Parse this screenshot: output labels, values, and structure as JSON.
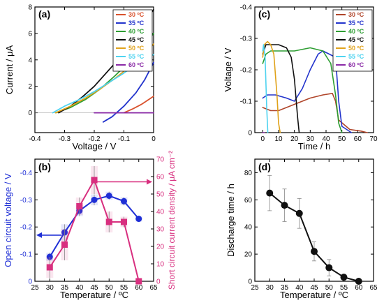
{
  "chart_data": [
    {
      "panel": "(a)",
      "type": "line",
      "xlabel": "Voltage / V",
      "ylabel": "Current / μA",
      "xlim": [
        -0.4,
        0
      ],
      "ylim": [
        -1.5,
        8
      ],
      "xticks": [
        -0.4,
        -0.3,
        -0.2,
        -0.1,
        0
      ],
      "yticks": [
        0,
        2,
        4,
        6,
        8
      ],
      "xtick_labels": [
        "-0.4",
        "-0.3",
        "-0.2",
        "-0.1",
        "0"
      ],
      "ytick_labels": [
        "0",
        "2",
        "4",
        "6",
        "8"
      ],
      "legend_position": "top-right",
      "series": [
        {
          "name": "30 ºC",
          "color": "#d9512c",
          "x": [
            -0.1,
            -0.07,
            -0.04,
            -0.02,
            0
          ],
          "y": [
            0,
            0.3,
            0.65,
            0.95,
            1.25
          ]
        },
        {
          "name": "35 ºC",
          "color": "#2233cc",
          "x": [
            -0.17,
            -0.14,
            -0.1,
            -0.06,
            -0.03,
            0
          ],
          "y": [
            -0.7,
            -0.3,
            0.5,
            1.5,
            2.5,
            3.8
          ]
        },
        {
          "name": "40 ºC",
          "color": "#2e9e33",
          "x": [
            -0.33,
            -0.28,
            -0.23,
            -0.18,
            -0.13,
            -0.08,
            -0.03,
            0
          ],
          "y": [
            0,
            0.4,
            1.0,
            1.8,
            2.8,
            3.9,
            5.2,
            6.0
          ]
        },
        {
          "name": "45 ºC",
          "color": "#111111",
          "x": [
            -0.32,
            -0.28,
            -0.24,
            -0.2,
            -0.16,
            -0.12,
            -0.08,
            -0.04,
            0
          ],
          "y": [
            0,
            0.5,
            1.2,
            2.0,
            3.0,
            4.0,
            5.2,
            6.5,
            7.8
          ]
        },
        {
          "name": "50 ºC",
          "color": "#e0a21a",
          "x": [
            -0.33,
            -0.28,
            -0.23,
            -0.18,
            -0.13,
            -0.08,
            -0.03,
            0
          ],
          "y": [
            0,
            0.5,
            1.1,
            1.8,
            2.6,
            3.5,
            4.4,
            5.2
          ]
        },
        {
          "name": "55 ºC",
          "color": "#4fd3f0",
          "x": [
            -0.34,
            -0.3,
            -0.25,
            -0.2,
            -0.15,
            -0.1,
            -0.05,
            0
          ],
          "y": [
            0,
            0.5,
            1.0,
            1.6,
            2.3,
            3.0,
            3.8,
            4.4
          ]
        },
        {
          "name": "60 ºC",
          "color": "#8a2aa6",
          "x": [
            -0.2,
            -0.15,
            -0.1,
            -0.05,
            0
          ],
          "y": [
            0,
            0,
            0,
            0,
            0
          ]
        }
      ]
    },
    {
      "panel": "(c)",
      "type": "line",
      "xlabel": "Time / h",
      "ylabel": "Voltage / V",
      "xlim": [
        -5,
        70
      ],
      "ylim": [
        0,
        -0.4
      ],
      "xticks": [
        0,
        10,
        20,
        30,
        40,
        50,
        60,
        70
      ],
      "yticks": [
        0,
        -0.1,
        -0.2,
        -0.3,
        -0.4
      ],
      "xtick_labels": [
        "0",
        "10",
        "20",
        "30",
        "40",
        "50",
        "60",
        "70"
      ],
      "ytick_labels": [
        "0",
        "-0.1",
        "-0.2",
        "-0.3",
        "-0.4"
      ],
      "legend_position": "top-right",
      "series": [
        {
          "name": "30 ºC",
          "color": "#b0452a",
          "x": [
            0,
            5,
            10,
            20,
            30,
            38,
            44,
            46,
            48,
            55,
            62,
            66
          ],
          "y": [
            -0.08,
            -0.07,
            -0.07,
            -0.09,
            -0.11,
            -0.12,
            -0.125,
            -0.1,
            -0.04,
            -0.01,
            -0.005,
            0
          ]
        },
        {
          "name": "35 ºC",
          "color": "#2233cc",
          "x": [
            0,
            3,
            8,
            15,
            20,
            25,
            30,
            35,
            38,
            42,
            46,
            48,
            50,
            56
          ],
          "y": [
            -0.11,
            -0.12,
            -0.12,
            -0.11,
            -0.1,
            -0.14,
            -0.2,
            -0.25,
            -0.26,
            -0.25,
            -0.24,
            -0.1,
            -0.02,
            0
          ]
        },
        {
          "name": "40 ºC",
          "color": "#2e9e33",
          "x": [
            0,
            2,
            5,
            10,
            20,
            30,
            38,
            43,
            46,
            48,
            50
          ],
          "y": [
            -0.22,
            -0.25,
            -0.26,
            -0.26,
            -0.26,
            -0.27,
            -0.26,
            -0.22,
            -0.12,
            -0.03,
            0
          ]
        },
        {
          "name": "45 ºC",
          "color": "#111111",
          "x": [
            0,
            2,
            5,
            10,
            15,
            18,
            20,
            22,
            23
          ],
          "y": [
            -0.25,
            -0.28,
            -0.28,
            -0.28,
            -0.27,
            -0.24,
            -0.17,
            -0.05,
            0
          ]
        },
        {
          "name": "50 ºC",
          "color": "#e0a21a",
          "x": [
            0,
            1,
            3,
            5,
            7,
            9,
            10,
            11
          ],
          "y": [
            -0.24,
            -0.28,
            -0.29,
            -0.28,
            -0.25,
            -0.12,
            -0.03,
            0
          ]
        },
        {
          "name": "55 ºC",
          "color": "#4fd3f0",
          "x": [
            0,
            0.5,
            1.5,
            2.5,
            3.2
          ],
          "y": [
            -0.26,
            -0.28,
            -0.24,
            -0.08,
            0
          ]
        },
        {
          "name": "60 ºC",
          "color": "#8a2aa6",
          "x": [
            0,
            0.5,
            1
          ],
          "y": [
            0,
            0,
            0
          ]
        }
      ]
    },
    {
      "panel": "(b)",
      "type": "line",
      "xlabel": "Temperature / ºC",
      "ylabel": "Open circuit voltage / V",
      "ylabel_right": "Short circuit current density / μA cm⁻²",
      "xlim": [
        25,
        65
      ],
      "ylim": [
        0,
        -0.45
      ],
      "ylim_right": [
        0,
        70
      ],
      "xticks": [
        25,
        30,
        35,
        40,
        45,
        50,
        55,
        60,
        65
      ],
      "yticks": [
        0,
        -0.1,
        -0.2,
        -0.3,
        -0.4
      ],
      "yticks_right": [
        0,
        10,
        20,
        30,
        40,
        50,
        60,
        70
      ],
      "xtick_labels": [
        "25",
        "30",
        "35",
        "40",
        "45",
        "50",
        "55",
        "60",
        "65"
      ],
      "ytick_labels": [
        "0",
        "-0.1",
        "-0.2",
        "-0.3",
        "-0.4"
      ],
      "ytick_labels_right": [
        "0",
        "10",
        "20",
        "30",
        "40",
        "50",
        "60",
        "70"
      ],
      "series": [
        {
          "axis": "left",
          "color": "#1f2fd6",
          "marker": "circle",
          "x": [
            30,
            35,
            40,
            45,
            50,
            55,
            60
          ],
          "y": [
            -0.09,
            -0.18,
            -0.26,
            -0.3,
            -0.315,
            -0.295,
            -0.23
          ],
          "err": [
            0.015,
            0.03,
            0.02,
            0.02,
            0.015,
            0.015,
            0.01
          ]
        },
        {
          "axis": "right",
          "color": "#d82f7f",
          "marker": "square",
          "x": [
            30,
            35,
            40,
            45,
            50,
            55,
            60
          ],
          "y": [
            8,
            21,
            43,
            58,
            34,
            34,
            0
          ],
          "err": [
            6,
            9,
            5,
            8,
            6,
            3,
            0
          ]
        }
      ]
    },
    {
      "panel": "(d)",
      "type": "line",
      "xlabel": "Temperature / ºC",
      "ylabel": "Discharge time / h",
      "xlim": [
        25,
        65
      ],
      "ylim": [
        0,
        90
      ],
      "xticks": [
        25,
        30,
        35,
        40,
        45,
        50,
        55,
        60,
        65
      ],
      "yticks": [
        0,
        20,
        40,
        60,
        80
      ],
      "xtick_labels": [
        "25",
        "30",
        "35",
        "40",
        "45",
        "50",
        "55",
        "60",
        "65"
      ],
      "ytick_labels": [
        "0",
        "20",
        "40",
        "60",
        "80"
      ],
      "series": [
        {
          "color": "#111111",
          "marker": "circle",
          "x": [
            30,
            35,
            40,
            45,
            50,
            55,
            60
          ],
          "y": [
            65,
            56,
            50,
            22,
            10,
            3,
            0
          ],
          "err": [
            13,
            12,
            11,
            7,
            6,
            2,
            1
          ]
        }
      ]
    }
  ]
}
